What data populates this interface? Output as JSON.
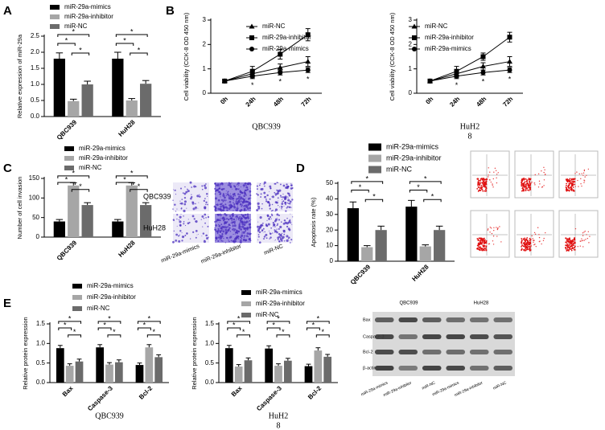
{
  "panels": [
    "A",
    "B",
    "C",
    "D",
    "E"
  ],
  "chart_data": [
    {
      "type": "bar",
      "y_label": "Relative expression of miR-29a",
      "categories": [
        "QBC939",
        "HuH28"
      ],
      "series": [
        {
          "name": "miR-29a-mimics",
          "color": "#000000",
          "values": [
            1.8,
            1.8
          ],
          "errors": [
            0.18,
            0.2
          ]
        },
        {
          "name": "miR-29a-inhibitor",
          "color": "#a6a6a6",
          "values": [
            0.48,
            0.5
          ],
          "errors": [
            0.06,
            0.06
          ]
        },
        {
          "name": "miR-NC",
          "color": "#6b6b6b",
          "values": [
            1.0,
            1.02
          ],
          "errors": [
            0.1,
            0.1
          ]
        }
      ],
      "ylim": [
        0,
        2.5
      ],
      "yticks": [
        {
          "value": 0,
          "label": "0.0"
        },
        {
          "value": 0.5,
          "label": "0.5"
        },
        {
          "value": 1,
          "label": "1.0"
        },
        {
          "value": 1.5,
          "label": "1.5"
        },
        {
          "value": 2,
          "label": "2.0"
        },
        {
          "value": 2.5,
          "label": "2.5"
        }
      ],
      "annotations": [
        "*",
        "*",
        "*",
        "*",
        "*",
        "*"
      ]
    },
    {
      "type": "line",
      "y_label": "Cell viability (CCK-8 OD 450 nm)",
      "x_label": [
        "QBC939"
      ],
      "categories": [
        "0h",
        "24h",
        "48h",
        "72h"
      ],
      "series": [
        {
          "name": "miR-NC",
          "color": "#000000",
          "marker": "triangle",
          "values": [
            0.5,
            0.8,
            1.05,
            1.3
          ],
          "errors": [
            0.05,
            0.15,
            0.15,
            0.2
          ]
        },
        {
          "name": "miR-29a-inhibitor",
          "color": "#000000",
          "marker": "square",
          "values": [
            0.5,
            0.9,
            1.6,
            2.4
          ],
          "errors": [
            0.05,
            0.2,
            0.2,
            0.25
          ]
        },
        {
          "name": "miR-29a-mimics",
          "color": "#000000",
          "marker": "circle",
          "values": [
            0.5,
            0.7,
            0.85,
            0.95
          ],
          "errors": [
            0.05,
            0.1,
            0.1,
            0.1
          ]
        }
      ],
      "ylim": [
        0,
        3
      ],
      "yticks": [
        0,
        1,
        2,
        3
      ],
      "annotations": [
        "*",
        "*",
        "*"
      ]
    },
    {
      "type": "line",
      "y_label": "Cell viability (CCK-8 OD 450 nm)",
      "x_label": [
        "HuH2",
        "8"
      ],
      "categories": [
        "0h",
        "24h",
        "48h",
        "72h"
      ],
      "series": [
        {
          "name": "miR-NC",
          "color": "#000000",
          "marker": "triangle",
          "values": [
            0.5,
            0.8,
            1.1,
            1.3
          ],
          "errors": [
            0.05,
            0.15,
            0.15,
            0.2
          ]
        },
        {
          "name": "miR-29a-inhibitor",
          "color": "#000000",
          "marker": "square",
          "values": [
            0.5,
            0.9,
            1.5,
            2.3
          ],
          "errors": [
            0.05,
            0.2,
            0.15,
            0.2
          ]
        },
        {
          "name": "miR-29a-mimics",
          "color": "#000000",
          "marker": "circle",
          "values": [
            0.5,
            0.7,
            0.85,
            0.95
          ],
          "errors": [
            0.05,
            0.1,
            0.1,
            0.1
          ]
        }
      ],
      "ylim": [
        0,
        3
      ],
      "yticks": [
        0,
        1,
        2,
        3
      ],
      "annotations": [
        "*",
        "*",
        "*"
      ]
    },
    {
      "type": "bar",
      "y_label": "Number of cell invasion",
      "categories": [
        "QBC939",
        "HuH28"
      ],
      "series": [
        {
          "name": "miR-29a-mimics",
          "color": "#000000",
          "values": [
            40,
            40
          ],
          "errors": [
            5,
            5
          ]
        },
        {
          "name": "miR-29a-inhibitor",
          "color": "#a6a6a6",
          "values": [
            132,
            132
          ],
          "errors": [
            7,
            7
          ]
        },
        {
          "name": "miR-NC",
          "color": "#6b6b6b",
          "values": [
            82,
            82
          ],
          "errors": [
            6,
            6
          ]
        }
      ],
      "ylim": [
        0,
        150
      ],
      "yticks": [
        0,
        50,
        100,
        150
      ],
      "annotations": [
        "*",
        "*",
        "*",
        "*",
        "*",
        "*"
      ]
    },
    {
      "type": "bar",
      "y_label": "Apoptosis rate (%)",
      "categories": [
        "QBC939",
        "HuH28"
      ],
      "series": [
        {
          "name": "miR-29a-mimics",
          "color": "#000000",
          "values": [
            34,
            35
          ],
          "errors": [
            4,
            4
          ]
        },
        {
          "name": "miR-29a-inhibitor",
          "color": "#a6a6a6",
          "values": [
            9,
            9.5
          ],
          "errors": [
            1,
            1
          ]
        },
        {
          "name": "miR-NC",
          "color": "#6b6b6b",
          "values": [
            20,
            20
          ],
          "errors": [
            2.5,
            2.5
          ]
        }
      ],
      "ylim": [
        0,
        50
      ],
      "yticks": [
        0,
        10,
        20,
        30,
        40,
        50
      ],
      "annotations": [
        "*",
        "*",
        "*",
        "*",
        "*",
        "*"
      ]
    },
    {
      "type": "bar",
      "y_label": "Relative protein expression",
      "x_label": [
        "QBC939"
      ],
      "categories": [
        "Bax",
        "Caspase-3",
        "Bcl-2"
      ],
      "series": [
        {
          "name": "miR-29a-mimics",
          "color": "#000000",
          "values": [
            0.88,
            0.9,
            0.45
          ],
          "errors": [
            0.07,
            0.07,
            0.05
          ]
        },
        {
          "name": "miR-29a-inhibitor",
          "color": "#a6a6a6",
          "values": [
            0.43,
            0.46,
            0.9
          ],
          "errors": [
            0.05,
            0.05,
            0.07
          ]
        },
        {
          "name": "miR-NC",
          "color": "#6b6b6b",
          "values": [
            0.54,
            0.52,
            0.65
          ],
          "errors": [
            0.06,
            0.06,
            0.06
          ]
        }
      ],
      "ylim": [
        0,
        1.5
      ],
      "yticks": [
        {
          "value": 0,
          "label": "0.0"
        },
        {
          "value": 0.5,
          "label": "0.5"
        },
        {
          "value": 1,
          "label": "1.0"
        },
        {
          "value": 1.5,
          "label": "1.5"
        }
      ],
      "annotations": [
        "*",
        "*",
        "*",
        "*",
        "*",
        "*",
        "*",
        "*",
        "*"
      ]
    },
    {
      "type": "bar",
      "y_label": "Relative protein expression",
      "x_label": [
        "HuH2",
        "8"
      ],
      "categories": [
        "Bax",
        "Caspase-3",
        "Bcl-2"
      ],
      "series": [
        {
          "name": "miR-29a-mimics",
          "color": "#000000",
          "values": [
            0.88,
            0.87,
            0.42
          ],
          "errors": [
            0.07,
            0.07,
            0.05
          ]
        },
        {
          "name": "miR-29a-inhibitor",
          "color": "#a6a6a6",
          "values": [
            0.41,
            0.43,
            0.82
          ],
          "errors": [
            0.05,
            0.05,
            0.07
          ]
        },
        {
          "name": "miR-NC",
          "color": "#6b6b6b",
          "values": [
            0.57,
            0.56,
            0.66
          ],
          "errors": [
            0.06,
            0.06,
            0.06
          ]
        }
      ],
      "ylim": [
        0,
        1.5
      ],
      "yticks": [
        {
          "value": 0,
          "label": "0.0"
        },
        {
          "value": 0.5,
          "label": "0.5"
        },
        {
          "value": 1,
          "label": "1.0"
        },
        {
          "value": 1.5,
          "label": "1.5"
        }
      ],
      "annotations": [
        "*",
        "*",
        "*",
        "*",
        "*",
        "*",
        "*",
        "*",
        "*"
      ]
    }
  ],
  "invasion": {
    "rows": [
      "QBC939",
      "HuH28"
    ],
    "columns": [
      "miR-29a-mimics",
      "miR-29a-inhibitor",
      "miR-NC"
    ]
  },
  "western_blot": {
    "groups": [
      "QBC939",
      "HuH28"
    ],
    "proteins": [
      "Bax",
      "Caspase-3",
      "Bcl-2",
      "β-actin"
    ],
    "lanes": [
      "miR-29a-mimics",
      "miR-29a-inhibitor",
      "miR-NC",
      "miR-29a-mimics",
      "miR-29a-inhibitor",
      "miR-NC"
    ]
  }
}
